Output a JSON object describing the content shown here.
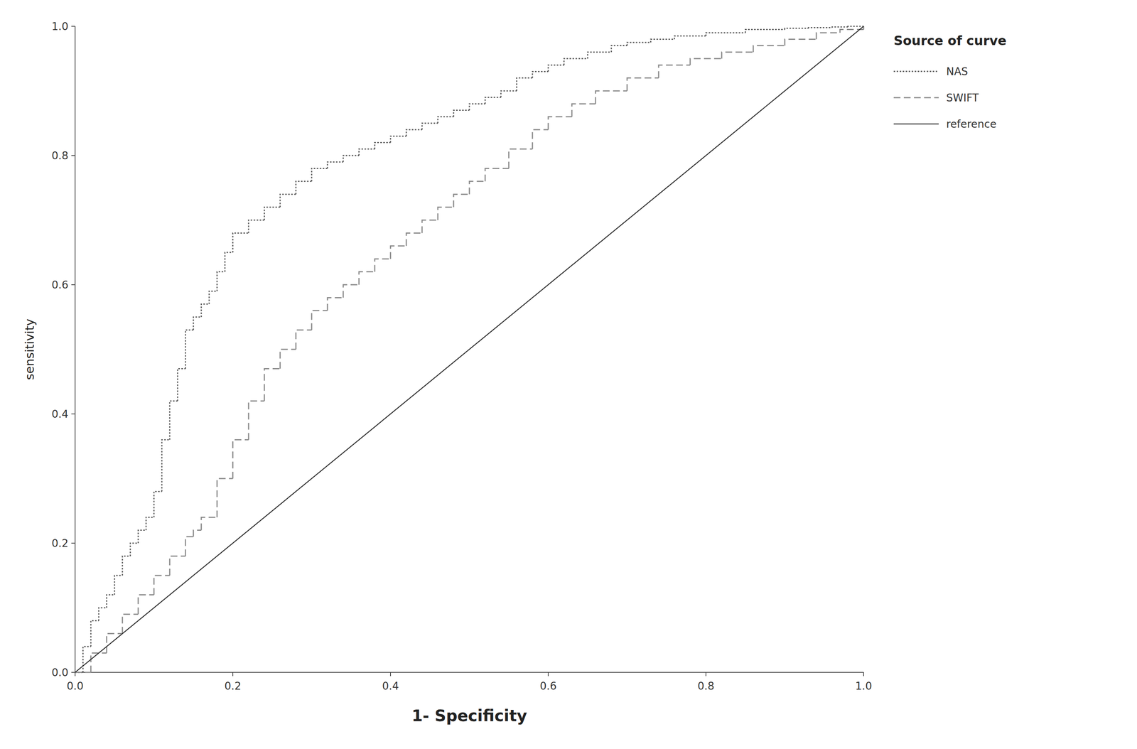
{
  "chart_data": {
    "type": "step",
    "xlabel": "1- Specificity",
    "ylabel": "sensitivity",
    "xlim": [
      0.0,
      1.0
    ],
    "ylim": [
      0.0,
      1.0
    ],
    "xticks": [
      {
        "value": 0.0,
        "label": "0.0"
      },
      0.2,
      0.4,
      0.6,
      0.8,
      {
        "value": 1.0,
        "label": "1.0"
      }
    ],
    "yticks": [
      {
        "value": 0.0,
        "label": "0.0"
      },
      0.2,
      0.4,
      0.6,
      0.8,
      {
        "value": 1.0,
        "label": "1.0"
      }
    ],
    "grid": false,
    "legend": "right",
    "legend_title": "Source of curve",
    "series": [
      {
        "name": "NAS",
        "color": "#555555",
        "line_style": "dotted",
        "x": [
          0.0,
          0.01,
          0.02,
          0.03,
          0.04,
          0.05,
          0.06,
          0.07,
          0.08,
          0.09,
          0.1,
          0.11,
          0.12,
          0.13,
          0.14,
          0.15,
          0.16,
          0.17,
          0.18,
          0.19,
          0.2,
          0.22,
          0.24,
          0.26,
          0.28,
          0.3,
          0.32,
          0.34,
          0.36,
          0.38,
          0.4,
          0.42,
          0.44,
          0.46,
          0.48,
          0.5,
          0.52,
          0.54,
          0.56,
          0.58,
          0.6,
          0.62,
          0.65,
          0.68,
          0.7,
          0.73,
          0.76,
          0.8,
          0.85,
          0.9,
          0.93,
          0.96,
          0.98,
          1.0
        ],
        "values": [
          0.0,
          0.04,
          0.08,
          0.1,
          0.12,
          0.15,
          0.18,
          0.2,
          0.22,
          0.24,
          0.28,
          0.36,
          0.42,
          0.47,
          0.53,
          0.55,
          0.57,
          0.59,
          0.62,
          0.65,
          0.68,
          0.7,
          0.72,
          0.74,
          0.76,
          0.78,
          0.79,
          0.8,
          0.81,
          0.82,
          0.83,
          0.84,
          0.85,
          0.86,
          0.87,
          0.88,
          0.89,
          0.9,
          0.92,
          0.93,
          0.94,
          0.95,
          0.96,
          0.97,
          0.975,
          0.98,
          0.985,
          0.99,
          0.995,
          0.997,
          0.998,
          0.999,
          1.0,
          1.0
        ]
      },
      {
        "name": "SWIFT",
        "color": "#888888",
        "line_style": "dashed",
        "x": [
          0.0,
          0.02,
          0.04,
          0.06,
          0.08,
          0.1,
          0.12,
          0.14,
          0.15,
          0.16,
          0.18,
          0.2,
          0.22,
          0.24,
          0.26,
          0.28,
          0.3,
          0.32,
          0.34,
          0.36,
          0.38,
          0.4,
          0.42,
          0.44,
          0.46,
          0.48,
          0.5,
          0.52,
          0.55,
          0.58,
          0.6,
          0.63,
          0.66,
          0.7,
          0.74,
          0.78,
          0.82,
          0.86,
          0.9,
          0.94,
          0.97,
          1.0
        ],
        "values": [
          0.0,
          0.03,
          0.06,
          0.09,
          0.12,
          0.15,
          0.18,
          0.21,
          0.22,
          0.24,
          0.3,
          0.36,
          0.42,
          0.47,
          0.5,
          0.53,
          0.56,
          0.58,
          0.6,
          0.62,
          0.64,
          0.66,
          0.68,
          0.7,
          0.72,
          0.74,
          0.76,
          0.78,
          0.81,
          0.84,
          0.86,
          0.88,
          0.9,
          0.92,
          0.94,
          0.95,
          0.96,
          0.97,
          0.98,
          0.99,
          0.995,
          1.0
        ]
      },
      {
        "name": "reference",
        "color": "#333333",
        "line_style": "solid",
        "type": "line",
        "x": [
          0,
          1
        ],
        "values": [
          0,
          1
        ]
      }
    ]
  }
}
